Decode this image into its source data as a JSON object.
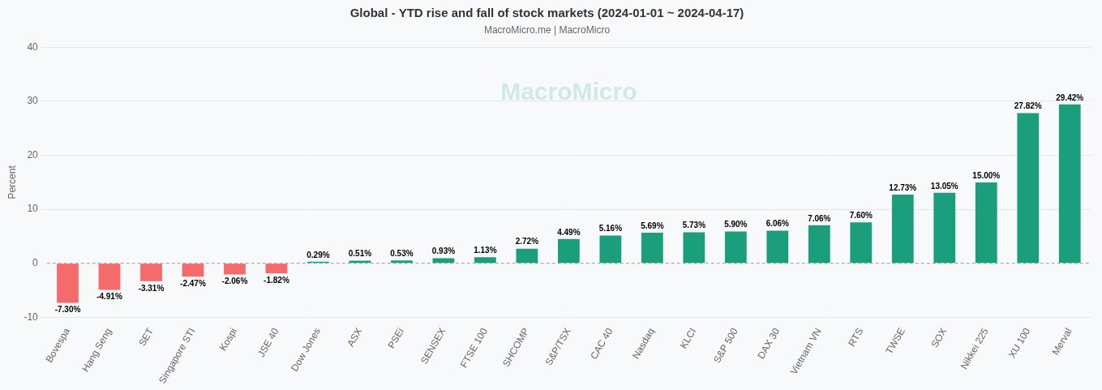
{
  "chart_data": {
    "type": "bar",
    "title": "Global - YTD rise and fall of stock markets (2024-01-01 ~ 2024-04-17)",
    "subtitle": "MacroMicro.me | MacroMicro",
    "annotations": [
      "MacroMicro"
    ],
    "y_label": "Percent",
    "categories": [
      "Bovespa",
      "Hang Seng",
      "SET",
      "Singapore STI",
      "Kospi",
      "JSE 40",
      "Dow Jones",
      "ASX",
      "PSEi",
      "SENSEX",
      "FTSE 100",
      "SHCOMP",
      "S&P/TSX",
      "CAC 40",
      "Nasdaq",
      "KLCI",
      "S&P 500",
      "DAX 30",
      "Vietnam VN",
      "RTS",
      "TWSE",
      "SOX",
      "Nikkei 225",
      "XU 100",
      "Merval"
    ],
    "values": [
      -7.3,
      -4.91,
      -3.31,
      -2.47,
      -2.06,
      -1.82,
      0.29,
      0.51,
      0.53,
      0.93,
      1.13,
      2.72,
      4.49,
      5.16,
      5.69,
      5.73,
      5.9,
      6.06,
      7.06,
      7.6,
      12.73,
      13.05,
      15.0,
      27.82,
      29.42
    ],
    "value_labels": [
      "-7.30%",
      "-4.91%",
      "-3.31%",
      "-2.47%",
      "-2.06%",
      "-1.82%",
      "0.29%",
      "0.51%",
      "0.53%",
      "0.93%",
      "1.13%",
      "2.72%",
      "4.49%",
      "5.16%",
      "5.69%",
      "5.73%",
      "5.90%",
      "6.06%",
      "7.06%",
      "7.60%",
      "12.73%",
      "13.05%",
      "15.00%",
      "27.82%",
      "29.42%"
    ],
    "colors": [
      "#f56b6b",
      "#f56b6b",
      "#f56b6b",
      "#f56b6b",
      "#f56b6b",
      "#f56b6b",
      "#1a9e7c",
      "#1a9e7c",
      "#1a9e7c",
      "#1a9e7c",
      "#1a9e7c",
      "#1a9e7c",
      "#1a9e7c",
      "#1a9e7c",
      "#1a9e7c",
      "#1a9e7c",
      "#1a9e7c",
      "#1a9e7c",
      "#1a9e7c",
      "#1a9e7c",
      "#1a9e7c",
      "#1a9e7c",
      "#1a9e7c",
      "#1a9e7c",
      "#1a9e7c"
    ],
    "ylim": [
      -10,
      40
    ],
    "yticks": [
      -10,
      0,
      10,
      20,
      30,
      40
    ],
    "grid": true,
    "data_labels": true
  }
}
